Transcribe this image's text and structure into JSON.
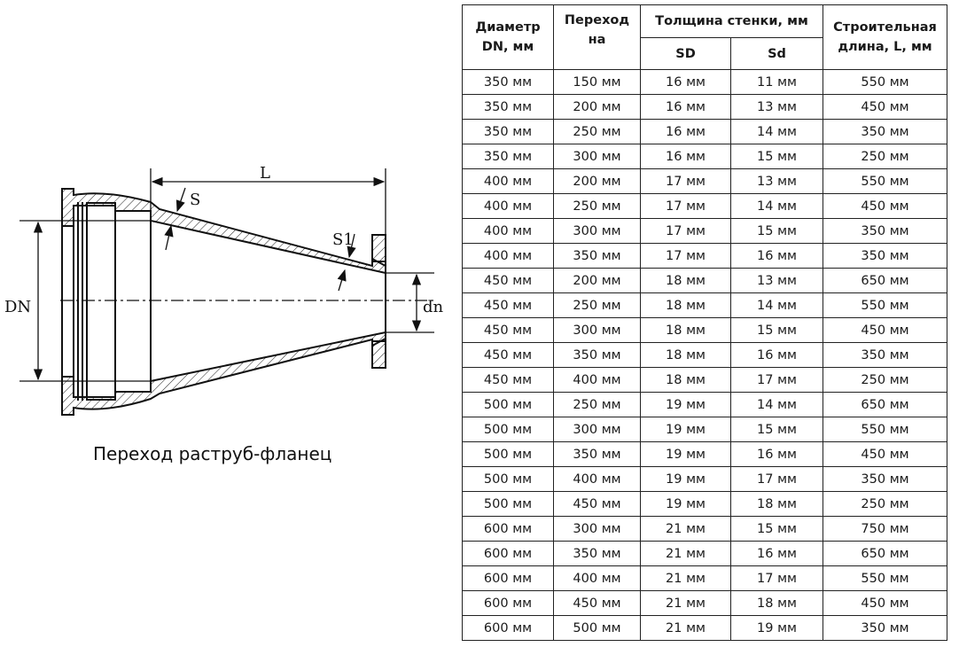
{
  "drawing": {
    "labels": {
      "L": "L",
      "S": "S",
      "S1": "S1",
      "DN": "DN",
      "dn": "dn"
    },
    "caption": "Переход раструб-фланец"
  },
  "table": {
    "headers": {
      "diameter": "Диаметр DN, мм",
      "transition": "Переход на",
      "wall": "Толщина стенки, мм",
      "sd_big": "SD",
      "sd_small": "Sd",
      "length": "Строительная длина, L, мм"
    },
    "rows": [
      [
        "350 мм",
        "150 мм",
        "16 мм",
        "11 мм",
        "550 мм"
      ],
      [
        "350 мм",
        "200 мм",
        "16 мм",
        "13 мм",
        "450 мм"
      ],
      [
        "350 мм",
        "250 мм",
        "16 мм",
        "14 мм",
        "350 мм"
      ],
      [
        "350 мм",
        "300 мм",
        "16 мм",
        "15 мм",
        "250 мм"
      ],
      [
        "400 мм",
        "200 мм",
        "17 мм",
        "13 мм",
        "550 мм"
      ],
      [
        "400 мм",
        "250 мм",
        "17 мм",
        "14 мм",
        "450 мм"
      ],
      [
        "400 мм",
        "300 мм",
        "17 мм",
        "15 мм",
        "350 мм"
      ],
      [
        "400 мм",
        "350 мм",
        "17 мм",
        "16 мм",
        "350 мм"
      ],
      [
        "450 мм",
        "200 мм",
        "18 мм",
        "13 мм",
        "650 мм"
      ],
      [
        "450 мм",
        "250 мм",
        "18 мм",
        "14 мм",
        "550 мм"
      ],
      [
        "450 мм",
        "300 мм",
        "18 мм",
        "15 мм",
        "450 мм"
      ],
      [
        "450 мм",
        "350 мм",
        "18 мм",
        "16 мм",
        "350 мм"
      ],
      [
        "450 мм",
        "400 мм",
        "18 мм",
        "17 мм",
        "250 мм"
      ],
      [
        "500 мм",
        "250 мм",
        "19 мм",
        "14 мм",
        "650 мм"
      ],
      [
        "500 мм",
        "300 мм",
        "19 мм",
        "15 мм",
        "550 мм"
      ],
      [
        "500 мм",
        "350 мм",
        "19 мм",
        "16 мм",
        "450 мм"
      ],
      [
        "500 мм",
        "400 мм",
        "19 мм",
        "17 мм",
        "350 мм"
      ],
      [
        "500 мм",
        "450 мм",
        "19 мм",
        "18 мм",
        "250 мм"
      ],
      [
        "600 мм",
        "300 мм",
        "21 мм",
        "15 мм",
        "750 мм"
      ],
      [
        "600 мм",
        "350 мм",
        "21 мм",
        "16 мм",
        "650 мм"
      ],
      [
        "600 мм",
        "400 мм",
        "21 мм",
        "17 мм",
        "550 мм"
      ],
      [
        "600 мм",
        "450 мм",
        "21 мм",
        "18 мм",
        "450 мм"
      ],
      [
        "600 мм",
        "500 мм",
        "21 мм",
        "19 мм",
        "350 мм"
      ]
    ]
  }
}
